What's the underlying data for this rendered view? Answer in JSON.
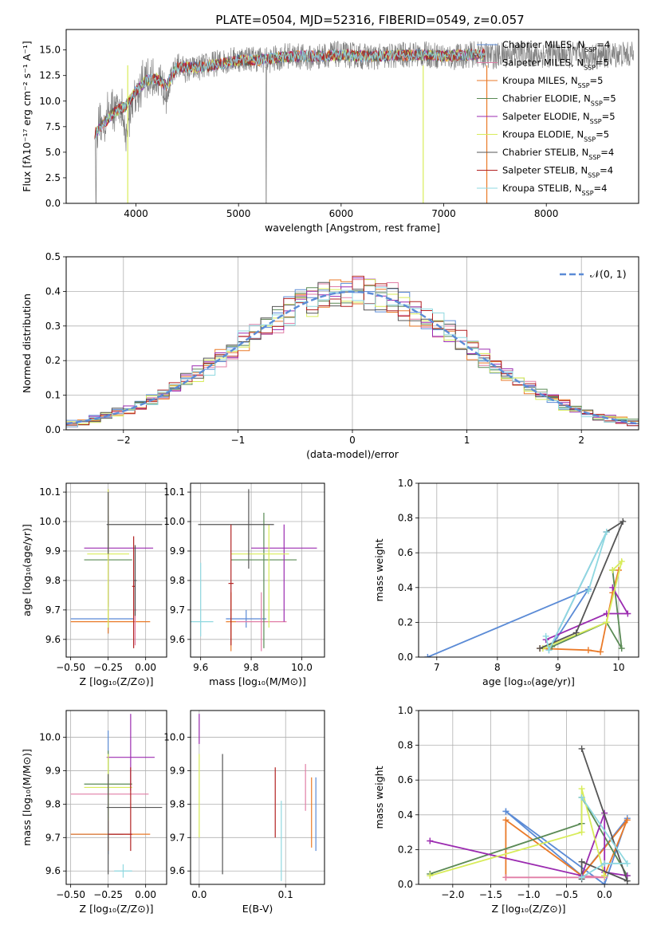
{
  "chart_data": [
    {
      "id": "spectrum",
      "type": "line",
      "title": "PLATE=0504, MJD=52316, FIBERID=0549, z=0.057",
      "xlabel": "wavelength [Angstrom, rest frame]",
      "ylabel": "Flux [fλ10⁻¹⁷ erg cm⁻² s⁻¹ A⁻¹]",
      "xlim": [
        3320,
        8900
      ],
      "ylim": [
        0,
        17
      ],
      "xticks": [
        4000,
        5000,
        6000,
        7000,
        8000
      ],
      "yticks": [
        0.0,
        2.5,
        5.0,
        7.5,
        10.0,
        12.5,
        15.0
      ],
      "grid": false,
      "legend_position": "right",
      "legend": [
        {
          "name": "Chabrier MILES, N",
          "sub": "SSP",
          "suffix": "=4",
          "color": "#5b8bd6"
        },
        {
          "name": "Salpeter MILES, N",
          "sub": "SSP",
          "suffix": "=5",
          "color": "#e17ea6"
        },
        {
          "name": "Kroupa MILES, N",
          "sub": "SSP",
          "suffix": "=5",
          "color": "#ea7a28"
        },
        {
          "name": "Chabrier ELODIE, N",
          "sub": "SSP",
          "suffix": "=5",
          "color": "#5a8a55"
        },
        {
          "name": "Salpeter ELODIE, N",
          "sub": "SSP",
          "suffix": "=5",
          "color": "#9b2bb0"
        },
        {
          "name": "Kroupa ELODIE, N",
          "sub": "SSP",
          "suffix": "=5",
          "color": "#d8ec5a"
        },
        {
          "name": "Chabrier STELIB, N",
          "sub": "SSP",
          "suffix": "=4",
          "color": "#555555"
        },
        {
          "name": "Salpeter STELIB, N",
          "sub": "SSP",
          "suffix": "=4",
          "color": "#b22222"
        },
        {
          "name": "Kroupa STELIB, N",
          "sub": "SSP",
          "suffix": "=4",
          "color": "#8fd8e0"
        }
      ],
      "data_curve": {
        "x": [
          3600,
          3650,
          3700,
          3750,
          3800,
          3850,
          3900,
          3950,
          4000,
          4100,
          4200,
          4300,
          4400,
          4500,
          4700,
          4900,
          5100,
          5300,
          5500,
          5700,
          5900,
          6100,
          6300,
          6500,
          6700,
          6900,
          7100,
          7300,
          7500,
          7700,
          7900,
          8100,
          8300,
          8500,
          8700,
          8850
        ],
        "y": [
          6.5,
          7.5,
          8.0,
          9.5,
          9.0,
          10.0,
          6.0,
          9.5,
          11.0,
          12.0,
          12.0,
          11.0,
          13.5,
          13.0,
          13.5,
          14.0,
          14.2,
          14.0,
          14.5,
          14.2,
          14.6,
          14.5,
          14.3,
          14.4,
          14.6,
          14.5,
          14.3,
          14.6,
          14.4,
          14.7,
          14.5,
          14.6,
          14.5,
          14.4,
          14.6,
          14.5
        ],
        "color": "#808080"
      },
      "model_curve": {
        "x": [
          3600,
          3700,
          3800,
          3900,
          4000,
          4100,
          4200,
          4300,
          4400,
          4600,
          4800,
          5000,
          5200,
          5400,
          5600,
          5800,
          6000,
          6200,
          6400,
          6600,
          6800,
          7000,
          7200,
          7400
        ],
        "y": [
          6.8,
          8.0,
          9.0,
          9.5,
          11.0,
          12.0,
          12.2,
          11.5,
          13.3,
          13.3,
          13.6,
          14.0,
          14.0,
          14.3,
          14.4,
          14.4,
          14.5,
          14.4,
          14.4,
          14.5,
          14.5,
          14.4,
          14.5,
          14.6
        ],
        "color": "#76dde6"
      }
    },
    {
      "id": "residuals",
      "type": "step",
      "xlabel": "(data-model)/error",
      "ylabel": "Normed distribution",
      "xlim": [
        -2.5,
        2.5
      ],
      "ylim": [
        0,
        0.5
      ],
      "xticks": [
        -2,
        -1,
        0,
        1,
        2
      ],
      "yticks": [
        0.0,
        0.1,
        0.2,
        0.3,
        0.4,
        0.5
      ],
      "grid": true,
      "legend_position": "top-right",
      "legend": [
        {
          "name": "𝒩(0, 1)",
          "color": "#5b8bd6",
          "dash": true
        }
      ],
      "bin_width": 0.1,
      "bin_start": -2.5
    },
    {
      "id": "age_vs_Z",
      "type": "errorbar",
      "xlabel": "Z [log₁₀(Z/Z⊙)]",
      "ylabel": "age  [log₁₀(age/yr)]",
      "xlim": [
        -0.53,
        0.14
      ],
      "ylim": [
        9.54,
        10.13
      ],
      "xticks": [
        -0.5,
        -0.25,
        0.0
      ],
      "xticklabels": [
        "−0.50",
        "−0.25",
        "0.00"
      ],
      "yticks": [
        9.6,
        9.7,
        9.8,
        9.9,
        10.0,
        10.1
      ],
      "grid": true,
      "points": [
        {
          "x": -0.25,
          "y": 9.67,
          "xerr": [
            0.25,
            0.17
          ],
          "yerr": [
            0.05,
            0.05
          ],
          "color": "#5b8bd6"
        },
        {
          "x": -0.25,
          "y": 9.66,
          "xerr": [
            0.25,
            0.28
          ],
          "yerr": [
            0.04,
            0.04
          ],
          "color": "#ea7a28"
        },
        {
          "x": -0.07,
          "y": 9.7,
          "xerr": [
            0.01,
            0.01
          ],
          "yerr": [
            0.12,
            0.1
          ],
          "color": "#e17ea6"
        },
        {
          "x": -0.25,
          "y": 9.87,
          "xerr": [
            0.16,
            0.16
          ],
          "yerr": [
            0.15,
            0.15
          ],
          "color": "#5a8a55"
        },
        {
          "x": -0.25,
          "y": 9.91,
          "xerr": [
            0.16,
            0.3
          ],
          "yerr": [
            0.2,
            0.2
          ],
          "color": "#9b2bb0"
        },
        {
          "x": -0.25,
          "y": 9.89,
          "xerr": [
            0.14,
            0.14
          ],
          "yerr": [
            0.25,
            0.22
          ],
          "color": "#d8ec5a"
        },
        {
          "x": -0.25,
          "y": 9.99,
          "xerr": [
            0.01,
            0.36
          ],
          "yerr": [
            0.1,
            0.11
          ],
          "color": "#555555"
        },
        {
          "x": -0.08,
          "y": 9.78,
          "xerr": [
            0.01,
            0.01
          ],
          "yerr": [
            0.21,
            0.17
          ],
          "color": "#b22222"
        },
        {
          "x": -0.07,
          "y": 9.8,
          "xerr": [
            0.01,
            0.01
          ],
          "yerr": [
            0.12,
            0.12
          ],
          "color": "#555555"
        }
      ]
    },
    {
      "id": "age_vs_mass",
      "type": "errorbar",
      "xlabel": "mass [log₁₀(M/M⊙)]",
      "ylabel": "",
      "xlim": [
        9.56,
        10.09
      ],
      "ylim": [
        9.54,
        10.13
      ],
      "xticks": [
        9.6,
        9.8,
        10.0
      ],
      "yticks": [
        9.6,
        9.7,
        9.8,
        9.9,
        10.0,
        10.1
      ],
      "grid": true,
      "points": [
        {
          "x": 9.78,
          "y": 9.67,
          "xerr": [
            0.08,
            0.08
          ],
          "yerr": [
            0.03,
            0.03
          ],
          "color": "#5b8bd6"
        },
        {
          "x": 9.72,
          "y": 9.66,
          "xerr": [
            0.02,
            0.02
          ],
          "yerr": [
            0.1,
            0.1
          ],
          "color": "#ea7a28"
        },
        {
          "x": 9.84,
          "y": 9.66,
          "xerr": [
            0.1,
            0.1
          ],
          "yerr": [
            0.1,
            0.1
          ],
          "color": "#e17ea6"
        },
        {
          "x": 9.85,
          "y": 9.87,
          "xerr": [
            0.13,
            0.13
          ],
          "yerr": [
            0.3,
            0.16
          ],
          "color": "#5a8a55"
        },
        {
          "x": 9.93,
          "y": 9.91,
          "xerr": [
            0.13,
            0.13
          ],
          "yerr": [
            0.25,
            0.08
          ],
          "color": "#9b2bb0"
        },
        {
          "x": 9.87,
          "y": 9.89,
          "xerr": [
            0.15,
            0.08
          ],
          "yerr": [
            0.25,
            0.1
          ],
          "color": "#d8ec5a"
        },
        {
          "x": 9.79,
          "y": 9.99,
          "xerr": [
            0.2,
            0.1
          ],
          "yerr": [
            0.15,
            0.12
          ],
          "color": "#555555"
        },
        {
          "x": 9.72,
          "y": 9.79,
          "xerr": [
            0.01,
            0.01
          ],
          "yerr": [
            0.21,
            0.2
          ],
          "color": "#b22222"
        },
        {
          "x": 9.6,
          "y": 9.66,
          "xerr": [
            0.05,
            0.05
          ],
          "yerr": [
            0.05,
            0.2
          ],
          "color": "#8fd8e0"
        }
      ]
    },
    {
      "id": "mw_vs_age",
      "type": "line",
      "xlabel": "age  [log₁₀(age/yr)]",
      "ylabel": "mass weight",
      "xlim": [
        6.7,
        10.33
      ],
      "ylim": [
        0,
        1
      ],
      "xticks": [
        7,
        8,
        9,
        10
      ],
      "yticks": [
        0.0,
        0.2,
        0.4,
        0.6,
        0.8,
        1.0
      ],
      "grid": true,
      "series": [
        {
          "color": "#5b8bd6",
          "x": [
            6.85,
            9.5,
            8.85,
            9.8
          ],
          "y": [
            0.0,
            0.39,
            0.04,
            0.72
          ]
        },
        {
          "color": "#ea7a28",
          "x": [
            8.7,
            9.5,
            9.7,
            9.9,
            10.0
          ],
          "y": [
            0.05,
            0.04,
            0.03,
            0.37,
            0.5
          ]
        },
        {
          "color": "#5a8a55",
          "x": [
            8.9,
            9.8,
            10.05,
            9.9
          ],
          "y": [
            0.06,
            0.2,
            0.05,
            0.5
          ]
        },
        {
          "color": "#9b2bb0",
          "x": [
            8.8,
            9.8,
            10.15,
            9.9
          ],
          "y": [
            0.1,
            0.25,
            0.25,
            0.4
          ]
        },
        {
          "color": "#d8ec5a",
          "x": [
            8.75,
            9.8,
            10.05,
            9.9
          ],
          "y": [
            0.05,
            0.2,
            0.55,
            0.5
          ]
        },
        {
          "color": "#555555",
          "x": [
            8.7,
            9.3,
            10.07,
            9.8
          ],
          "y": [
            0.05,
            0.14,
            0.78,
            0.72
          ]
        },
        {
          "color": "#8fd8e0",
          "x": [
            8.8,
            8.85,
            9.8,
            9.5
          ],
          "y": [
            0.12,
            0.04,
            0.72,
            0.38
          ]
        }
      ]
    },
    {
      "id": "mass_vs_Z",
      "type": "errorbar",
      "xlabel": "Z [log₁₀(Z/Z⊙)]",
      "ylabel": "mass [log₁₀(M/M⊙)]",
      "xlim": [
        -0.53,
        0.14
      ],
      "ylim": [
        9.56,
        10.08
      ],
      "xticks": [
        -0.5,
        -0.25,
        0.0
      ],
      "xticklabels": [
        "−0.50",
        "−0.25",
        "0.00"
      ],
      "yticks": [
        9.6,
        9.7,
        9.8,
        9.9,
        10.0
      ],
      "grid": true,
      "points": [
        {
          "x": -0.25,
          "y": 9.71,
          "xerr": [
            0.25,
            0.1
          ],
          "yerr": [
            0.06,
            0.31
          ],
          "color": "#5b8bd6"
        },
        {
          "x": -0.25,
          "y": 9.71,
          "xerr": [
            0.25,
            0.28
          ],
          "yerr": [
            0.05,
            0.05
          ],
          "color": "#ea7a28"
        },
        {
          "x": -0.25,
          "y": 9.83,
          "xerr": [
            0.25,
            0.27
          ],
          "yerr": [
            0.01,
            0.01
          ],
          "color": "#e17ea6"
        },
        {
          "x": -0.25,
          "y": 9.86,
          "xerr": [
            0.16,
            0.16
          ],
          "yerr": [
            0.1,
            0.1
          ],
          "color": "#5a8a55"
        },
        {
          "x": -0.1,
          "y": 9.94,
          "xerr": [
            0.16,
            0.16
          ],
          "yerr": [
            0.1,
            0.13
          ],
          "color": "#9b2bb0"
        },
        {
          "x": -0.25,
          "y": 9.85,
          "xerr": [
            0.16,
            0.16
          ],
          "yerr": [
            0.1,
            0.1
          ],
          "color": "#d8ec5a"
        },
        {
          "x": -0.25,
          "y": 9.79,
          "xerr": [
            0.01,
            0.36
          ],
          "yerr": [
            0.2,
            0.1
          ],
          "color": "#555555"
        },
        {
          "x": -0.1,
          "y": 9.71,
          "xerr": [
            0.15,
            0.01
          ],
          "yerr": [
            0.05,
            0.2
          ],
          "color": "#b22222"
        },
        {
          "x": -0.15,
          "y": 9.6,
          "xerr": [
            0.06,
            0.06
          ],
          "yerr": [
            0.02,
            0.02
          ],
          "color": "#8fd8e0"
        }
      ]
    },
    {
      "id": "mass_vs_EBV",
      "type": "errorbar",
      "xlabel": "E(B-V)",
      "ylabel": "",
      "xlim": [
        -0.01,
        0.145
      ],
      "ylim": [
        9.56,
        10.08
      ],
      "xticks": [
        0.0,
        0.1
      ],
      "xticklabels": [
        "0.0",
        "0.1"
      ],
      "yticks": [
        9.6,
        9.7,
        9.8,
        9.9,
        10.0
      ],
      "grid": true,
      "points": [
        {
          "x": 0.0,
          "y": 10.01,
          "xerr": [
            0,
            0
          ],
          "yerr": [
            0.03,
            0.06
          ],
          "color": "#9b2bb0"
        },
        {
          "x": 0.0,
          "y": 9.85,
          "xerr": [
            0,
            0
          ],
          "yerr": [
            0.15,
            0.1
          ],
          "color": "#d8ec5a"
        },
        {
          "x": 0.027,
          "y": 9.77,
          "xerr": [
            0,
            0
          ],
          "yerr": [
            0.18,
            0.18
          ],
          "color": "#555555"
        },
        {
          "x": 0.088,
          "y": 9.81,
          "xerr": [
            0,
            0
          ],
          "yerr": [
            0.11,
            0.1
          ],
          "color": "#b22222"
        },
        {
          "x": 0.095,
          "y": 9.69,
          "xerr": [
            0,
            0
          ],
          "yerr": [
            0.12,
            0.12
          ],
          "color": "#8fd8e0"
        },
        {
          "x": 0.123,
          "y": 9.87,
          "xerr": [
            0,
            0
          ],
          "yerr": [
            0.09,
            0.05
          ],
          "color": "#e17ea6"
        },
        {
          "x": 0.13,
          "y": 9.78,
          "xerr": [
            0,
            0
          ],
          "yerr": [
            0.11,
            0.1
          ],
          "color": "#ea7a28"
        },
        {
          "x": 0.135,
          "y": 9.77,
          "xerr": [
            0,
            0
          ],
          "yerr": [
            0.11,
            0.11
          ],
          "color": "#5b8bd6"
        }
      ]
    },
    {
      "id": "mw_vs_Z",
      "type": "line",
      "xlabel": "Z [log₁₀(Z/Z⊙)]",
      "ylabel": "mass weight",
      "xlim": [
        -2.45,
        0.45
      ],
      "ylim": [
        0,
        1
      ],
      "xticks": [
        -2.0,
        -1.5,
        -1.0,
        -0.5,
        0.0
      ],
      "xticklabels": [
        "−2.0",
        "−1.5",
        "−1.0",
        "−0.5",
        "0.0"
      ],
      "yticks": [
        0.0,
        0.2,
        0.4,
        0.6,
        0.8,
        1.0
      ],
      "grid": true,
      "series": [
        {
          "color": "#5b8bd6",
          "x": [
            -1.3,
            -0.3,
            0.3,
            0.0,
            -1.3
          ],
          "y": [
            0.42,
            0.05,
            0.38,
            0.0,
            0.42
          ]
        },
        {
          "color": "#ea7a28",
          "x": [
            -1.3,
            -1.3,
            -0.3,
            0.3,
            0.0
          ],
          "y": [
            0.04,
            0.37,
            0.05,
            0.37,
            0.05
          ]
        },
        {
          "color": "#e17ea6",
          "x": [
            -1.3,
            0.0,
            -0.3
          ],
          "y": [
            0.04,
            0.04,
            0.05
          ]
        },
        {
          "color": "#5a8a55",
          "x": [
            -2.3,
            -0.3,
            -0.3,
            0.3
          ],
          "y": [
            0.06,
            0.35,
            0.5,
            0.05
          ]
        },
        {
          "color": "#9b2bb0",
          "x": [
            -2.3,
            -0.3,
            0.0,
            0.0,
            0.3
          ],
          "y": [
            0.25,
            0.05,
            0.41,
            0.07,
            0.05
          ]
        },
        {
          "color": "#d8ec5a",
          "x": [
            -2.3,
            -0.3,
            -0.3,
            0.0
          ],
          "y": [
            0.05,
            0.3,
            0.55,
            0.05
          ]
        },
        {
          "color": "#555555",
          "x": [
            -0.3,
            0.3,
            -0.3,
            -0.3
          ],
          "y": [
            0.78,
            0.02,
            0.13,
            0.03
          ]
        },
        {
          "color": "#8fd8e0",
          "x": [
            -0.3,
            0.3,
            0.0,
            -0.3
          ],
          "y": [
            0.5,
            0.12,
            0.12,
            0.04
          ]
        }
      ]
    }
  ]
}
